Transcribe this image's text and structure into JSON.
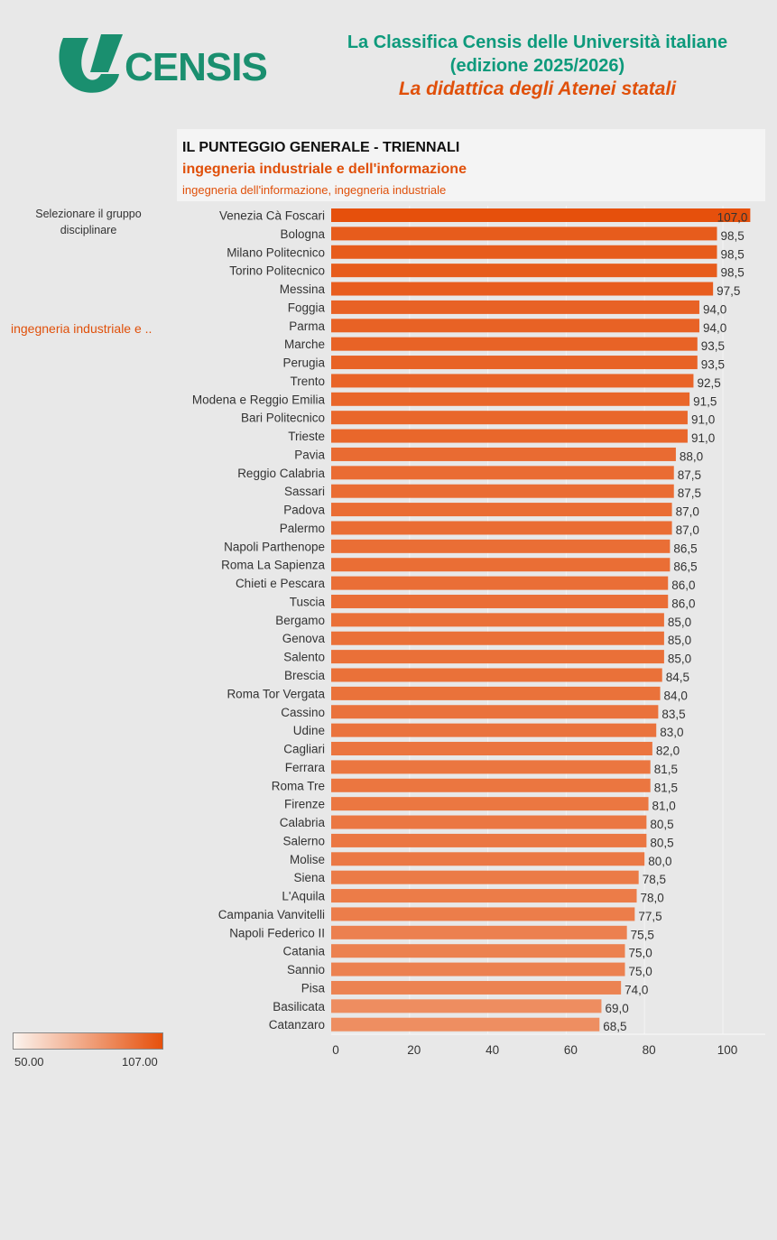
{
  "header": {
    "logo_text": "CENSIS",
    "title_line1": "La Classifica Censis delle Università italiane",
    "title_line2": "(edizione 2025/2026)",
    "subtitle": "La didattica degli Atenei statali"
  },
  "panel": {
    "title": "IL PUNTEGGIO GENERALE - TRIENNALI",
    "group": "ingegneria industriale e dell'informazione",
    "classes": "ingegneria dell'informazione, ingegneria industriale"
  },
  "selector": {
    "label": "Selezionare il gruppo disciplinare",
    "value": "ingegneria industriale e .."
  },
  "legend": {
    "min": "50.00",
    "max": "107.00"
  },
  "colors": {
    "accent": "#e0500a",
    "brand": "#0e9a7c",
    "scale_low": "#fbf3ee",
    "scale_high": "#e6500c"
  },
  "chart_data": {
    "type": "bar",
    "orientation": "horizontal",
    "title": "IL PUNTEGGIO GENERALE - TRIENNALI",
    "xlim": [
      0,
      110
    ],
    "ticks": [
      0,
      20,
      40,
      60,
      80,
      100
    ],
    "color_range": [
      50,
      107
    ],
    "categories": [
      "Venezia Cà Foscari",
      "Bologna",
      "Milano Politecnico",
      "Torino Politecnico",
      "Messina",
      "Foggia",
      "Parma",
      "Marche",
      "Perugia",
      "Trento",
      "Modena e Reggio Emilia",
      "Bari Politecnico",
      "Trieste",
      "Pavia",
      "Reggio Calabria",
      "Sassari",
      "Padova",
      "Palermo",
      "Napoli Parthenope",
      "Roma La Sapienza",
      "Chieti e Pescara",
      "Tuscia",
      "Bergamo",
      "Genova",
      "Salento",
      "Brescia",
      "Roma Tor Vergata",
      "Cassino",
      "Udine",
      "Cagliari",
      "Ferrara",
      "Roma Tre",
      "Firenze",
      "Calabria",
      "Salerno",
      "Molise",
      "Siena",
      "L'Aquila",
      "Campania Vanvitelli",
      "Napoli Federico II",
      "Catania",
      "Sannio",
      "Pisa",
      "Basilicata",
      "Catanzaro"
    ],
    "values": [
      107.0,
      98.5,
      98.5,
      98.5,
      97.5,
      94.0,
      94.0,
      93.5,
      93.5,
      92.5,
      91.5,
      91.0,
      91.0,
      88.0,
      87.5,
      87.5,
      87.0,
      87.0,
      86.5,
      86.5,
      86.0,
      86.0,
      85.0,
      85.0,
      85.0,
      84.5,
      84.0,
      83.5,
      83.0,
      82.0,
      81.5,
      81.5,
      81.0,
      80.5,
      80.5,
      80.0,
      78.5,
      78.0,
      77.5,
      75.5,
      75.0,
      75.0,
      74.0,
      69.0,
      68.5
    ],
    "value_labels": [
      "107,0",
      "98,5",
      "98,5",
      "98,5",
      "97,5",
      "94,0",
      "94,0",
      "93,5",
      "93,5",
      "92,5",
      "91,5",
      "91,0",
      "91,0",
      "88,0",
      "87,5",
      "87,5",
      "87,0",
      "87,0",
      "86,5",
      "86,5",
      "86,0",
      "86,0",
      "85,0",
      "85,0",
      "85,0",
      "84,5",
      "84,0",
      "83,5",
      "83,0",
      "82,0",
      "81,5",
      "81,5",
      "81,0",
      "80,5",
      "80,5",
      "80,0",
      "78,5",
      "78,0",
      "77,5",
      "75,5",
      "75,0",
      "75,0",
      "74,0",
      "69,0",
      "68,5"
    ]
  }
}
